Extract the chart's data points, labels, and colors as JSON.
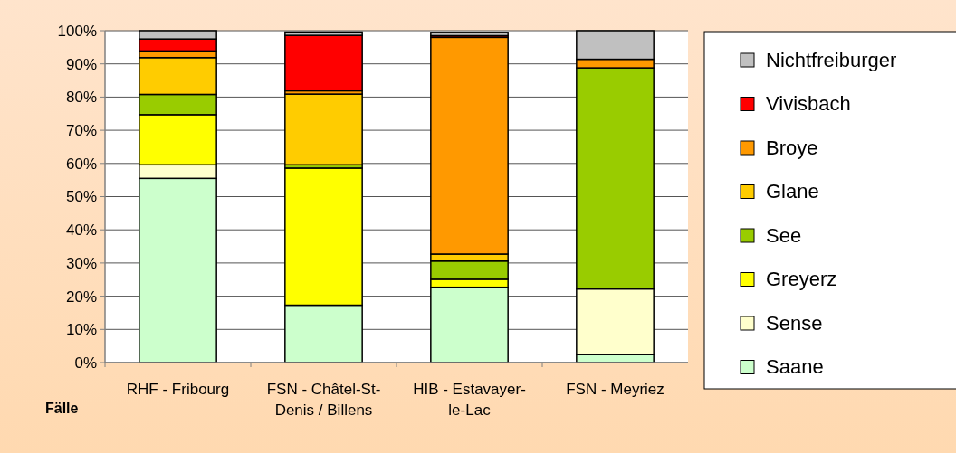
{
  "chart_data": {
    "type": "bar",
    "stacked": true,
    "xlabel": "Fälle",
    "categories": [
      "RHF - Fribourg",
      "FSN - Châtel-St-Denis / Billens",
      "HIB - Estavayer-le-Lac",
      "FSN - Meyriez"
    ],
    "ylim": [
      0,
      100
    ],
    "yticks": [
      {
        "value": 0,
        "label": "0%"
      },
      {
        "value": 10,
        "label": "10%"
      },
      {
        "value": 20,
        "label": "20%"
      },
      {
        "value": 30,
        "label": "30%"
      },
      {
        "value": 40,
        "label": "40%"
      },
      {
        "value": 50,
        "label": "50%"
      },
      {
        "value": 60,
        "label": "60%"
      },
      {
        "value": 70,
        "label": "70%"
      },
      {
        "value": 80,
        "label": "80%"
      },
      {
        "value": 90,
        "label": "90%"
      },
      {
        "value": 100,
        "label": "100%"
      }
    ],
    "grid": "y",
    "legend": "right",
    "series": [
      {
        "name": "Saane",
        "color": "#ccffcc",
        "values": [
          55.5,
          17.3,
          22.7,
          2.4
        ]
      },
      {
        "name": "Sense",
        "color": "#ffffcc",
        "values": [
          4.1,
          null,
          null,
          19.8
        ]
      },
      {
        "name": "Greyerz",
        "color": "#ffff00",
        "values": [
          15.1,
          41.3,
          2.4,
          0
        ]
      },
      {
        "name": "See",
        "color": "#99cc00",
        "values": [
          6.1,
          1.0,
          5.5,
          66.6
        ]
      },
      {
        "name": "Glane",
        "color": "#ffcc00",
        "values": [
          11.1,
          21.3,
          2.1,
          0
        ]
      },
      {
        "name": "Broye",
        "color": "#ff9900",
        "values": [
          2.0,
          1.0,
          65.3,
          2.6
        ]
      },
      {
        "name": "Vivisbach",
        "color": "#ff0000",
        "values": [
          3.6,
          16.7,
          0.5,
          0
        ]
      },
      {
        "name": "Nichtfreiburger",
        "color": "#c0c0c0",
        "values": [
          2.5,
          1.0,
          1.0,
          8.6
        ]
      }
    ]
  }
}
